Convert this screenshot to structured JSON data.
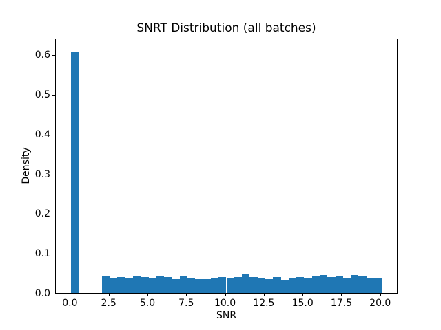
{
  "chart_data": {
    "type": "bar",
    "subtype": "histogram",
    "title": "SNRT Distribution (all batches)",
    "xlabel": "SNR",
    "ylabel": "Density",
    "xlim": [
      -0.95,
      21.12
    ],
    "ylim": [
      0,
      0.642
    ],
    "grid": false,
    "legend": "none",
    "bar_color": "#1f77b4",
    "text_color": "#000000",
    "bin_width": 0.5014,
    "xticks": {
      "values": [
        0.0,
        2.5,
        5.0,
        7.5,
        10.0,
        12.5,
        15.0,
        17.5,
        20.0
      ],
      "labels": [
        "0.0",
        "2.5",
        "5.0",
        "7.5",
        "10.0",
        "12.5",
        "15.0",
        "17.5",
        "20.0"
      ]
    },
    "yticks": {
      "values": [
        0.0,
        0.1,
        0.2,
        0.3,
        0.4,
        0.5,
        0.6
      ],
      "labels": [
        "0.0",
        "0.1",
        "0.2",
        "0.3",
        "0.4",
        "0.5",
        "0.6"
      ]
    },
    "bars": [
      {
        "x": 0.057,
        "h": 0.608
      },
      {
        "x": 2.063,
        "h": 0.044
      },
      {
        "x": 2.564,
        "h": 0.038
      },
      {
        "x": 3.066,
        "h": 0.042
      },
      {
        "x": 3.567,
        "h": 0.04
      },
      {
        "x": 4.069,
        "h": 0.045
      },
      {
        "x": 4.57,
        "h": 0.041
      },
      {
        "x": 5.071,
        "h": 0.039
      },
      {
        "x": 5.573,
        "h": 0.044
      },
      {
        "x": 6.074,
        "h": 0.041
      },
      {
        "x": 6.576,
        "h": 0.037
      },
      {
        "x": 7.077,
        "h": 0.043
      },
      {
        "x": 7.578,
        "h": 0.04
      },
      {
        "x": 8.08,
        "h": 0.037
      },
      {
        "x": 8.581,
        "h": 0.036
      },
      {
        "x": 9.083,
        "h": 0.039
      },
      {
        "x": 9.584,
        "h": 0.042
      },
      {
        "x": 10.085,
        "h": 0.04
      },
      {
        "x": 10.587,
        "h": 0.041
      },
      {
        "x": 11.088,
        "h": 0.05
      },
      {
        "x": 11.59,
        "h": 0.041
      },
      {
        "x": 12.091,
        "h": 0.038
      },
      {
        "x": 12.592,
        "h": 0.036
      },
      {
        "x": 13.094,
        "h": 0.042
      },
      {
        "x": 13.595,
        "h": 0.034
      },
      {
        "x": 14.097,
        "h": 0.038
      },
      {
        "x": 14.598,
        "h": 0.042
      },
      {
        "x": 15.099,
        "h": 0.04
      },
      {
        "x": 15.601,
        "h": 0.044
      },
      {
        "x": 16.102,
        "h": 0.046
      },
      {
        "x": 16.604,
        "h": 0.042
      },
      {
        "x": 17.105,
        "h": 0.043
      },
      {
        "x": 17.606,
        "h": 0.04
      },
      {
        "x": 18.108,
        "h": 0.046
      },
      {
        "x": 18.609,
        "h": 0.044
      },
      {
        "x": 19.111,
        "h": 0.04
      },
      {
        "x": 19.612,
        "h": 0.038
      }
    ]
  }
}
